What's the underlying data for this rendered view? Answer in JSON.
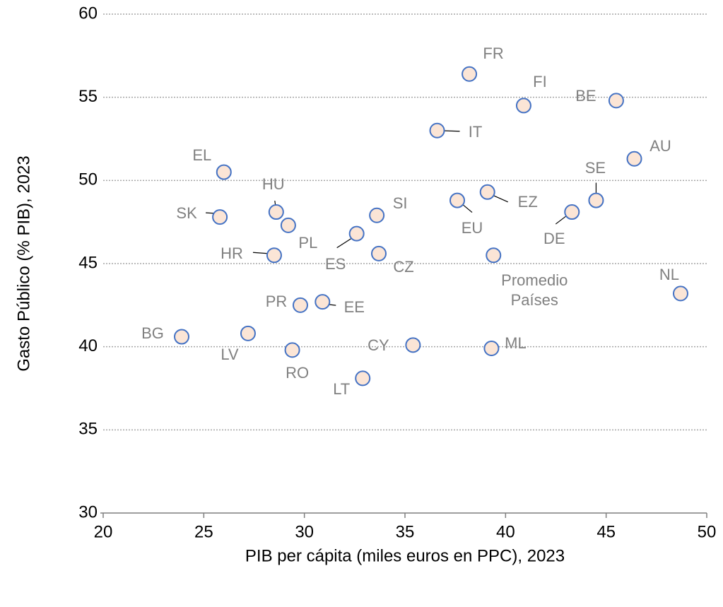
{
  "chart_data": {
    "type": "scatter",
    "xlabel": "PIB per cápita (miles euros en PPC), 2023",
    "ylabel": "Gasto Público  (% PIB), 2023",
    "labels": [
      "FR",
      "FI",
      "BE",
      "IT",
      "AU",
      "EL",
      "SE",
      "EZ",
      "EU",
      "DE",
      "HU",
      "SK",
      "SI",
      "PL",
      "ES",
      "CZ",
      "HR",
      "Promedio Países",
      "NL",
      "EE",
      "PR",
      "LV",
      "BG",
      "CY",
      "ML",
      "RO",
      "LT"
    ],
    "x": [
      38.2,
      40.9,
      45.5,
      36.6,
      46.4,
      26.0,
      44.5,
      39.1,
      37.6,
      43.3,
      28.6,
      25.8,
      33.6,
      29.2,
      32.6,
      33.7,
      28.5,
      39.4,
      48.7,
      30.9,
      29.8,
      27.2,
      23.9,
      35.4,
      39.3,
      29.4,
      32.9
    ],
    "values": [
      56.4,
      54.5,
      54.8,
      53.0,
      51.3,
      50.5,
      48.8,
      49.3,
      48.8,
      48.1,
      48.1,
      47.8,
      47.9,
      47.3,
      46.8,
      45.6,
      45.5,
      45.5,
      43.2,
      42.7,
      42.5,
      40.8,
      40.6,
      40.1,
      39.9,
      39.8,
      38.1
    ],
    "color": "#fbe5d6",
    "edgecolor": "#4472c4",
    "xlim": [
      20,
      50
    ],
    "xticks": [
      20,
      25,
      30,
      35,
      40,
      45,
      50
    ],
    "ylim": [
      30,
      60
    ],
    "yticks": [
      30,
      35,
      40,
      45,
      50,
      55,
      60
    ],
    "grid": true
  }
}
